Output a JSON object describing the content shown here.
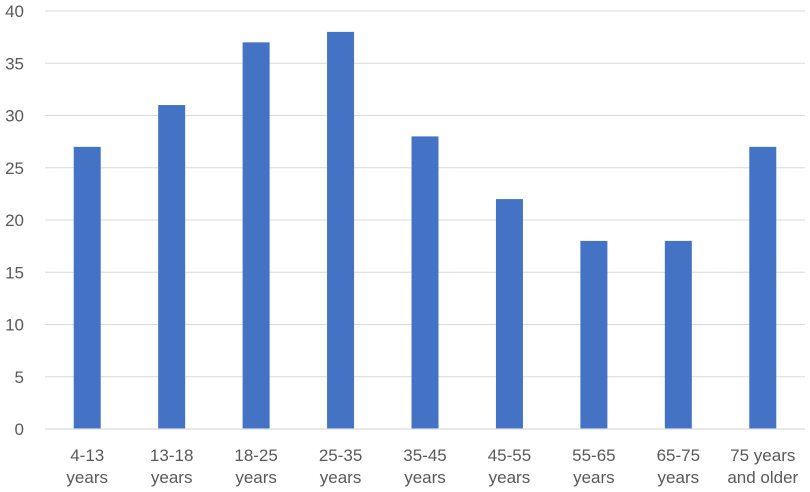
{
  "chart_data": {
    "type": "bar",
    "categories": [
      [
        "4-13",
        "years"
      ],
      [
        "13-18",
        "years"
      ],
      [
        "18-25",
        "years"
      ],
      [
        "25-35",
        "years"
      ],
      [
        "35-45",
        "years"
      ],
      [
        "45-55",
        "years"
      ],
      [
        "55-65",
        "years"
      ],
      [
        "65-75",
        "years"
      ],
      [
        "75 years",
        "and older"
      ]
    ],
    "values": [
      27,
      31,
      37,
      38,
      28,
      22,
      18,
      18,
      27
    ],
    "ylim": [
      0,
      40
    ],
    "y_ticks": [
      0,
      5,
      10,
      15,
      20,
      25,
      30,
      35,
      40
    ],
    "grid": true,
    "legend": "none",
    "bar_color": "#4472C4",
    "grid_color": "#D9D9D9"
  }
}
